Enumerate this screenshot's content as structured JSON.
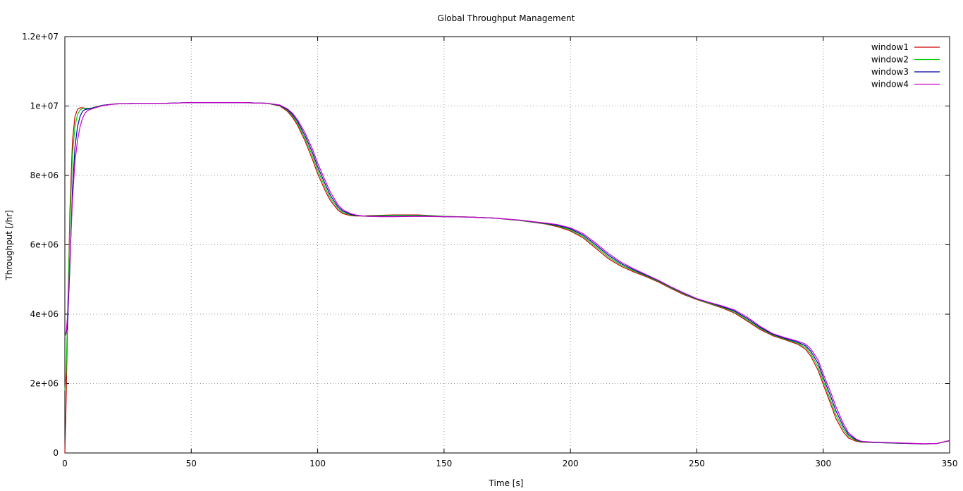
{
  "chart_data": {
    "type": "line",
    "title": "Global Throughput Management",
    "xlabel": "Time [s]",
    "ylabel": "Throughput [/hr]",
    "xlim": [
      0,
      350
    ],
    "ylim": [
      0,
      12000000
    ],
    "xticks": [
      0,
      50,
      100,
      150,
      200,
      250,
      300,
      350
    ],
    "xtick_labels": [
      "0",
      "50",
      "100",
      "150",
      "200",
      "250",
      "300",
      "350"
    ],
    "yticks": [
      0,
      2000000,
      4000000,
      6000000,
      8000000,
      10000000,
      12000000
    ],
    "ytick_labels": [
      "0",
      "2e+06",
      "4e+06",
      "6e+06",
      "8e+06",
      "1e+07",
      "1.2e+07"
    ],
    "grid": true,
    "legend_position": "top-right",
    "series": [
      {
        "name": "window1",
        "color": "#cc0000",
        "x": [
          0,
          0.5,
          1,
          2,
          3,
          4,
          5,
          6,
          7,
          8,
          9,
          10,
          12,
          15,
          20,
          25,
          30,
          40,
          50,
          60,
          70,
          80,
          85,
          88,
          90,
          92,
          95,
          98,
          100,
          103,
          105,
          108,
          110,
          113,
          115,
          118,
          120,
          125,
          130,
          140,
          150,
          160,
          170,
          180,
          190,
          195,
          200,
          205,
          210,
          215,
          220,
          225,
          230,
          235,
          240,
          245,
          250,
          255,
          260,
          265,
          270,
          275,
          280,
          285,
          290,
          293,
          295,
          298,
          300,
          303,
          305,
          308,
          310,
          313,
          315,
          320,
          330,
          340,
          345,
          350
        ],
        "y": [
          0,
          1500000,
          3500000,
          7000000,
          9000000,
          9700000,
          9900000,
          9950000,
          9950000,
          9940000,
          9930000,
          9930000,
          9970000,
          10020000,
          10060000,
          10070000,
          10080000,
          10080000,
          10100000,
          10100000,
          10100000,
          10080000,
          10000000,
          9850000,
          9680000,
          9450000,
          9000000,
          8450000,
          8050000,
          7560000,
          7280000,
          7000000,
          6900000,
          6840000,
          6830000,
          6830000,
          6840000,
          6850000,
          6860000,
          6860000,
          6820000,
          6800000,
          6770000,
          6700000,
          6600000,
          6520000,
          6400000,
          6200000,
          5900000,
          5600000,
          5380000,
          5220000,
          5080000,
          4920000,
          4730000,
          4560000,
          4420000,
          4300000,
          4180000,
          4030000,
          3800000,
          3560000,
          3380000,
          3260000,
          3130000,
          2990000,
          2800000,
          2380000,
          1980000,
          1400000,
          1000000,
          600000,
          430000,
          340000,
          310000,
          300000,
          280000,
          260000,
          270000,
          350000
        ]
      },
      {
        "name": "window2",
        "color": "#00cc00",
        "x": [
          0,
          0.5,
          1,
          2,
          3,
          4,
          5,
          6,
          7,
          8,
          9,
          10,
          12,
          15,
          20,
          25,
          30,
          40,
          50,
          60,
          70,
          80,
          85,
          88,
          90,
          92,
          95,
          98,
          100,
          103,
          105,
          108,
          110,
          113,
          115,
          118,
          120,
          125,
          130,
          140,
          150,
          160,
          170,
          180,
          190,
          195,
          200,
          205,
          210,
          215,
          220,
          225,
          230,
          235,
          240,
          245,
          250,
          255,
          260,
          265,
          270,
          275,
          280,
          285,
          290,
          293,
          295,
          298,
          300,
          303,
          305,
          308,
          310,
          313,
          315,
          320,
          330,
          340,
          345,
          350
        ],
        "y": [
          1800000,
          2300000,
          3800000,
          6600000,
          8600000,
          9400000,
          9750000,
          9880000,
          9930000,
          9930000,
          9930000,
          9930000,
          9970000,
          10020000,
          10060000,
          10070000,
          10080000,
          10080000,
          10100000,
          10100000,
          10100000,
          10080000,
          10010000,
          9880000,
          9720000,
          9500000,
          9070000,
          8550000,
          8150000,
          7650000,
          7350000,
          7050000,
          6930000,
          6860000,
          6840000,
          6830000,
          6830000,
          6840000,
          6850000,
          6850000,
          6820000,
          6800000,
          6770000,
          6700000,
          6610000,
          6540000,
          6430000,
          6240000,
          5950000,
          5650000,
          5420000,
          5250000,
          5100000,
          4940000,
          4750000,
          4580000,
          4430000,
          4310000,
          4200000,
          4060000,
          3830000,
          3590000,
          3400000,
          3280000,
          3160000,
          3040000,
          2870000,
          2480000,
          2080000,
          1500000,
          1100000,
          680000,
          480000,
          360000,
          320000,
          300000,
          280000,
          260000,
          270000,
          350000
        ]
      },
      {
        "name": "window3",
        "color": "#0000aa",
        "x": [
          0,
          0.5,
          1,
          2,
          3,
          4,
          5,
          6,
          7,
          8,
          9,
          10,
          12,
          15,
          20,
          25,
          30,
          40,
          50,
          60,
          70,
          80,
          85,
          88,
          90,
          92,
          95,
          98,
          100,
          103,
          105,
          108,
          110,
          113,
          115,
          118,
          120,
          125,
          130,
          140,
          150,
          160,
          170,
          180,
          190,
          195,
          200,
          205,
          210,
          215,
          220,
          225,
          230,
          235,
          240,
          245,
          250,
          255,
          260,
          265,
          270,
          275,
          280,
          285,
          290,
          293,
          295,
          298,
          300,
          303,
          305,
          308,
          310,
          313,
          315,
          320,
          330,
          340,
          345,
          350
        ],
        "y": [
          3450000,
          3450000,
          3600000,
          5400000,
          7600000,
          8800000,
          9400000,
          9700000,
          9850000,
          9900000,
          9910000,
          9920000,
          9960000,
          10020000,
          10060000,
          10070000,
          10080000,
          10080000,
          10100000,
          10100000,
          10100000,
          10080000,
          10020000,
          9900000,
          9760000,
          9560000,
          9150000,
          8650000,
          8250000,
          7750000,
          7430000,
          7100000,
          6970000,
          6880000,
          6850000,
          6830000,
          6820000,
          6820000,
          6820000,
          6830000,
          6810000,
          6800000,
          6770000,
          6710000,
          6620000,
          6560000,
          6460000,
          6280000,
          6000000,
          5700000,
          5460000,
          5280000,
          5120000,
          4960000,
          4770000,
          4600000,
          4440000,
          4330000,
          4220000,
          4090000,
          3870000,
          3620000,
          3420000,
          3300000,
          3190000,
          3090000,
          2940000,
          2580000,
          2180000,
          1620000,
          1220000,
          760000,
          530000,
          380000,
          330000,
          305000,
          285000,
          262000,
          272000,
          355000
        ]
      },
      {
        "name": "window4",
        "color": "#cc00cc",
        "x": [
          0,
          0.5,
          1,
          2,
          3,
          4,
          5,
          6,
          7,
          8,
          9,
          10,
          12,
          15,
          20,
          25,
          30,
          40,
          50,
          60,
          70,
          80,
          85,
          88,
          90,
          92,
          95,
          98,
          100,
          103,
          105,
          108,
          110,
          113,
          115,
          118,
          120,
          125,
          130,
          140,
          150,
          160,
          170,
          180,
          190,
          195,
          200,
          205,
          210,
          215,
          220,
          225,
          230,
          235,
          240,
          245,
          250,
          255,
          260,
          265,
          270,
          275,
          280,
          285,
          290,
          293,
          295,
          298,
          300,
          303,
          305,
          308,
          310,
          313,
          315,
          320,
          330,
          340,
          345,
          350
        ],
        "y": [
          3350000,
          3450000,
          3900000,
          5600000,
          7300000,
          8400000,
          9000000,
          9400000,
          9650000,
          9800000,
          9870000,
          9900000,
          9950000,
          10010000,
          10060000,
          10070000,
          10080000,
          10080000,
          10100000,
          10100000,
          10100000,
          10080000,
          10030000,
          9920000,
          9800000,
          9610000,
          9230000,
          8750000,
          8350000,
          7850000,
          7520000,
          7160000,
          7010000,
          6900000,
          6860000,
          6830000,
          6820000,
          6810000,
          6810000,
          6820000,
          6810000,
          6800000,
          6770000,
          6710000,
          6630000,
          6580000,
          6490000,
          6320000,
          6050000,
          5750000,
          5500000,
          5310000,
          5140000,
          4970000,
          4780000,
          4610000,
          4450000,
          4340000,
          4240000,
          4120000,
          3910000,
          3650000,
          3440000,
          3320000,
          3220000,
          3140000,
          3010000,
          2680000,
          2280000,
          1740000,
          1340000,
          840000,
          580000,
          400000,
          340000,
          310000,
          290000,
          265000,
          275000,
          360000
        ]
      }
    ]
  }
}
